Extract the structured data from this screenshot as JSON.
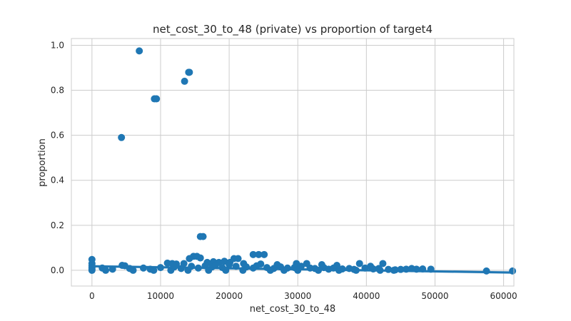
{
  "chart_data": {
    "type": "scatter",
    "title": "net_cost_30_to_48 (private) vs proportion of target4",
    "xlabel": "net_cost_30_to_48",
    "ylabel": "proportion",
    "xlim": [
      -3000,
      61500
    ],
    "ylim": [
      -0.07,
      1.03
    ],
    "x_ticks": [
      0,
      10000,
      20000,
      30000,
      40000,
      50000,
      60000
    ],
    "x_tick_labels": [
      "0",
      "10000",
      "20000",
      "30000",
      "40000",
      "50000",
      "60000"
    ],
    "y_ticks": [
      0.0,
      0.2,
      0.4,
      0.6,
      0.8,
      1.0
    ],
    "y_tick_labels": [
      "0.0",
      "0.2",
      "0.4",
      "0.6",
      "0.8",
      "1.0"
    ],
    "grid": true,
    "legend": "none",
    "point_color": "#1f77b4",
    "points": [
      [
        6900,
        0.975
      ],
      [
        14100,
        0.88
      ],
      [
        14200,
        0.88
      ],
      [
        13500,
        0.84
      ],
      [
        9100,
        0.762
      ],
      [
        9400,
        0.762
      ],
      [
        4300,
        0.59
      ],
      [
        15800,
        0.15
      ],
      [
        16200,
        0.15
      ],
      [
        23500,
        0.07
      ],
      [
        24300,
        0.07
      ],
      [
        25100,
        0.07
      ],
      [
        14800,
        0.062
      ],
      [
        15300,
        0.062
      ],
      [
        15800,
        0.055
      ],
      [
        14200,
        0.052
      ],
      [
        20700,
        0.052
      ],
      [
        21300,
        0.052
      ],
      [
        0,
        0.048
      ],
      [
        0,
        0.03
      ],
      [
        0,
        0.02
      ],
      [
        0,
        0.012
      ],
      [
        0,
        0.005
      ],
      [
        0,
        0.0
      ],
      [
        4400,
        0.022
      ],
      [
        4800,
        0.02
      ],
      [
        11000,
        0.032
      ],
      [
        11700,
        0.03
      ],
      [
        12300,
        0.028
      ],
      [
        13400,
        0.03
      ],
      [
        16800,
        0.035
      ],
      [
        17700,
        0.038
      ],
      [
        18500,
        0.035
      ],
      [
        19300,
        0.04
      ],
      [
        20100,
        0.035
      ],
      [
        22100,
        0.03
      ],
      [
        24600,
        0.028
      ],
      [
        27000,
        0.025
      ],
      [
        29800,
        0.03
      ],
      [
        31300,
        0.03
      ],
      [
        33500,
        0.025
      ],
      [
        35700,
        0.022
      ],
      [
        39000,
        0.03
      ],
      [
        42400,
        0.03
      ],
      [
        40600,
        0.018
      ],
      [
        1500,
        0.01
      ],
      [
        3000,
        0.005
      ],
      [
        5500,
        0.008
      ],
      [
        7500,
        0.01
      ],
      [
        8500,
        0.005
      ],
      [
        10000,
        0.012
      ],
      [
        12000,
        0.015
      ],
      [
        13000,
        0.008
      ],
      [
        14500,
        0.018
      ],
      [
        15500,
        0.01
      ],
      [
        16500,
        0.02
      ],
      [
        17500,
        0.015
      ],
      [
        18000,
        0.022
      ],
      [
        19000,
        0.012
      ],
      [
        20000,
        0.025
      ],
      [
        21000,
        0.018
      ],
      [
        22500,
        0.015
      ],
      [
        23500,
        0.01
      ],
      [
        24000,
        0.02
      ],
      [
        25500,
        0.012
      ],
      [
        26500,
        0.008
      ],
      [
        27500,
        0.015
      ],
      [
        28500,
        0.01
      ],
      [
        29500,
        0.012
      ],
      [
        30500,
        0.018
      ],
      [
        31800,
        0.01
      ],
      [
        32500,
        0.008
      ],
      [
        33800,
        0.012
      ],
      [
        34500,
        0.005
      ],
      [
        35200,
        0.01
      ],
      [
        36500,
        0.006
      ],
      [
        37500,
        0.008
      ],
      [
        38200,
        0.004
      ],
      [
        39800,
        0.01
      ],
      [
        41000,
        0.006
      ],
      [
        41800,
        0.008
      ],
      [
        43200,
        0.004
      ],
      [
        44200,
        0.002
      ],
      [
        45000,
        0.004
      ],
      [
        45800,
        0.005
      ],
      [
        46600,
        0.008
      ],
      [
        47300,
        0.005
      ],
      [
        48200,
        0.006
      ],
      [
        49400,
        0.005
      ],
      [
        57500,
        -0.003
      ],
      [
        61300,
        -0.003
      ],
      [
        2000,
        0.0
      ],
      [
        6000,
        0.0
      ],
      [
        9000,
        0.0
      ],
      [
        11500,
        0.0
      ],
      [
        14000,
        0.0
      ],
      [
        17000,
        0.0
      ],
      [
        19500,
        0.0
      ],
      [
        22000,
        0.0
      ],
      [
        26000,
        0.0
      ],
      [
        28000,
        0.0
      ],
      [
        30000,
        0.0
      ],
      [
        33000,
        0.0
      ],
      [
        36000,
        0.0
      ],
      [
        38500,
        0.0
      ],
      [
        42000,
        0.0
      ],
      [
        44000,
        0.0
      ]
    ],
    "regression": {
      "x_start": 0,
      "y_start": 0.018,
      "x_end": 61500,
      "y_end": -0.01,
      "band_color": "#1f77b4"
    }
  }
}
